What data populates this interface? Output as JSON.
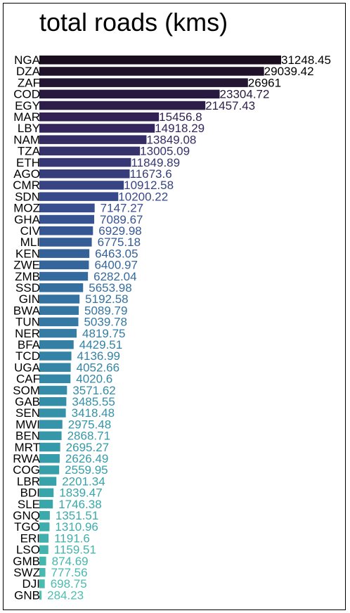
{
  "chart_data": {
    "type": "bar",
    "orientation": "horizontal",
    "title": "total roads (kms)",
    "xlabel": "",
    "ylabel": "",
    "grid": false,
    "legend": "none",
    "colormap": "mako-like gradient (dark purple to teal)",
    "categories": [
      "NGA",
      "DZA",
      "ZAF",
      "COD",
      "EGY",
      "MAR",
      "LBY",
      "NAM",
      "TZA",
      "ETH",
      "AGO",
      "CMR",
      "SDN",
      "MOZ",
      "GHA",
      "CIV",
      "MLI",
      "KEN",
      "ZWE",
      "ZMB",
      "SSD",
      "GIN",
      "BWA",
      "TUN",
      "NER",
      "BFA",
      "TCD",
      "UGA",
      "CAF",
      "SOM",
      "GAB",
      "SEN",
      "MWI",
      "BEN",
      "MRT",
      "RWA",
      "COG",
      "LBR",
      "BDI",
      "SLE",
      "GNQ",
      "TGO",
      "ERI",
      "LSO",
      "GMB",
      "SWZ",
      "DJI",
      "GNB"
    ],
    "values": [
      31248.45,
      29039.42,
      26961,
      23304.72,
      21457.43,
      15456.8,
      14918.29,
      13849.08,
      13005.09,
      11849.89,
      11673.6,
      10912.58,
      10200.22,
      7147.27,
      7089.67,
      6929.98,
      6775.18,
      6463.05,
      6400.97,
      6282.04,
      5653.98,
      5192.58,
      5089.79,
      5039.78,
      4819.75,
      4429.51,
      4136.99,
      4052.66,
      4020.6,
      3571.62,
      3485.55,
      3418.48,
      2975.48,
      2868.71,
      2695.27,
      2626.49,
      2559.95,
      2201.34,
      1839.47,
      1746.38,
      1351.51,
      1310.96,
      1191.6,
      1159.51,
      874.69,
      777.56,
      698.75,
      284.23
    ],
    "value_labels": [
      "31248.45",
      "29039.42",
      "26961",
      "23304.72",
      "21457.43",
      "15456.8",
      "14918.29",
      "13849.08",
      "13005.09",
      "11849.89",
      "11673.6",
      "10912.58",
      "10200.22",
      "7147.27",
      "7089.67",
      "6929.98",
      "6775.18",
      "6463.05",
      "6400.97",
      "6282.04",
      "5653.98",
      "5192.58",
      "5089.79",
      "5039.78",
      "4819.75",
      "4429.51",
      "4136.99",
      "4052.66",
      "4020.6",
      "3571.62",
      "3485.55",
      "3418.48",
      "2975.48",
      "2868.71",
      "2695.27",
      "2626.49",
      "2559.95",
      "2201.34",
      "1839.47",
      "1746.38",
      "1351.51",
      "1310.96",
      "1191.6",
      "1159.51",
      "874.69",
      "777.56",
      "698.75",
      "284.23"
    ]
  }
}
